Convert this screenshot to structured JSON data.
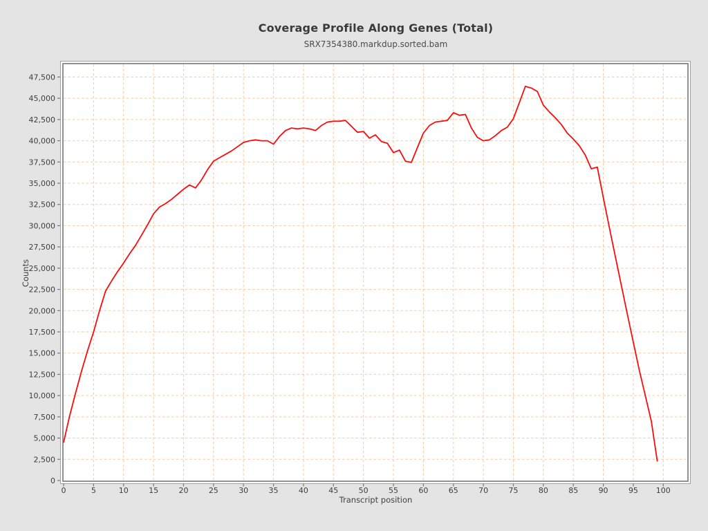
{
  "header": {
    "title": "Coverage Profile Along Genes (Total)",
    "subtitle": "SRX7354380.markdup.sorted.bam"
  },
  "colors": {
    "page_background": "#e4e4e4",
    "plot_background": "#ffffff",
    "grid_line": "#f6c9a1",
    "frame_inner": "#767676",
    "frame_outer": "#a0a0a0",
    "tick_mark": "#767676",
    "tick_text": "#3c3c3c",
    "series_line": "#fa0b0b"
  },
  "chart_data": {
    "type": "line",
    "title": "Coverage Profile Along Genes (Total)",
    "subtitle": "SRX7354380.markdup.sorted.bam",
    "xlabel": "Transcript position",
    "ylabel": "Counts",
    "x_range": [
      0,
      104
    ],
    "y_range": [
      0,
      49000
    ],
    "grid": true,
    "grid_style": "dashed",
    "legend_position": "none",
    "x_ticks": [
      0,
      5,
      10,
      15,
      20,
      25,
      30,
      35,
      40,
      45,
      50,
      55,
      60,
      65,
      70,
      75,
      80,
      85,
      90,
      95,
      100
    ],
    "y_ticks": [
      0,
      2500,
      5000,
      7500,
      10000,
      12500,
      15000,
      17500,
      20000,
      22500,
      25000,
      27500,
      30000,
      32500,
      35000,
      37500,
      40000,
      42500,
      45000,
      47500
    ],
    "y_tick_labels": [
      "0",
      "2,500",
      "5,000",
      "7,500",
      "10,000",
      "12,500",
      "15,000",
      "17,500",
      "20,000",
      "22,500",
      "25,000",
      "27,500",
      "30,000",
      "32,500",
      "35,000",
      "37,500",
      "40,000",
      "42,500",
      "45,000",
      "47,500"
    ],
    "series": [
      {
        "name": "SRX7354380.markdup.sorted.bam",
        "color": "#fa0b0b",
        "x": [
          0,
          1,
          2,
          3,
          4,
          5,
          6,
          7,
          8,
          9,
          10,
          11,
          12,
          13,
          14,
          15,
          16,
          17,
          18,
          19,
          20,
          21,
          22,
          23,
          24,
          25,
          26,
          27,
          28,
          29,
          30,
          31,
          32,
          33,
          34,
          35,
          36,
          37,
          38,
          39,
          40,
          41,
          42,
          43,
          44,
          45,
          46,
          47,
          48,
          49,
          50,
          51,
          52,
          53,
          54,
          55,
          56,
          57,
          58,
          59,
          60,
          61,
          62,
          63,
          64,
          65,
          66,
          67,
          68,
          69,
          70,
          71,
          72,
          73,
          74,
          75,
          76,
          77,
          78,
          79,
          80,
          81,
          82,
          83,
          84,
          85,
          86,
          87,
          88,
          89,
          90,
          91,
          92,
          93,
          94,
          95,
          96,
          97,
          98,
          99
        ],
        "values": [
          4500,
          7600,
          10300,
          12900,
          15300,
          17500,
          20000,
          22300,
          23500,
          24600,
          25600,
          26700,
          27700,
          28900,
          30100,
          31400,
          32200,
          32600,
          33100,
          33700,
          34300,
          34800,
          34450,
          35400,
          36600,
          37600,
          38000,
          38400,
          38800,
          39300,
          39800,
          40000,
          40100,
          40000,
          40000,
          39600,
          40500,
          41200,
          41500,
          41400,
          41500,
          41400,
          41200,
          41800,
          42200,
          42300,
          42300,
          42400,
          41700,
          41000,
          41100,
          40300,
          40700,
          39900,
          39700,
          38600,
          38900,
          37600,
          37450,
          39200,
          40900,
          41800,
          42200,
          42300,
          42400,
          43300,
          43000,
          43100,
          41500,
          40400,
          40000,
          40100,
          40600,
          41200,
          41600,
          42600,
          44500,
          46400,
          46200,
          45800,
          44200,
          43400,
          42700,
          41900,
          40900,
          40200,
          39400,
          38300,
          36700,
          36900,
          33300,
          29800,
          26400,
          23000,
          19600,
          16300,
          13000,
          10000,
          7000,
          2300
        ]
      }
    ]
  }
}
